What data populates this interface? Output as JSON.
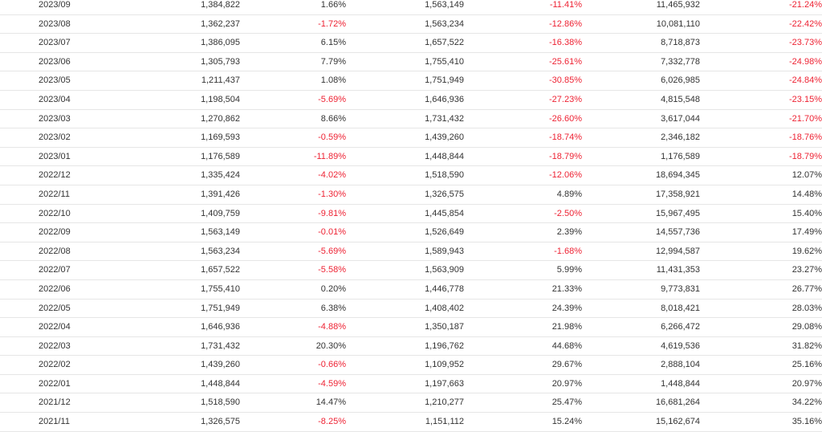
{
  "colors": {
    "negative": "#ee2233",
    "text": "#333333",
    "row_border": "#e6e6e6"
  },
  "rows": [
    {
      "month": "2023/09",
      "value_a": "1,384,822",
      "change_a": "1.66%",
      "value_b": "1,563,149",
      "change_b": "-11.41%",
      "cumulative": "11,465,932",
      "change_c": "-21.24%"
    },
    {
      "month": "2023/08",
      "value_a": "1,362,237",
      "change_a": "-1.72%",
      "value_b": "1,563,234",
      "change_b": "-12.86%",
      "cumulative": "10,081,110",
      "change_c": "-22.42%"
    },
    {
      "month": "2023/07",
      "value_a": "1,386,095",
      "change_a": "6.15%",
      "value_b": "1,657,522",
      "change_b": "-16.38%",
      "cumulative": "8,718,873",
      "change_c": "-23.73%"
    },
    {
      "month": "2023/06",
      "value_a": "1,305,793",
      "change_a": "7.79%",
      "value_b": "1,755,410",
      "change_b": "-25.61%",
      "cumulative": "7,332,778",
      "change_c": "-24.98%"
    },
    {
      "month": "2023/05",
      "value_a": "1,211,437",
      "change_a": "1.08%",
      "value_b": "1,751,949",
      "change_b": "-30.85%",
      "cumulative": "6,026,985",
      "change_c": "-24.84%"
    },
    {
      "month": "2023/04",
      "value_a": "1,198,504",
      "change_a": "-5.69%",
      "value_b": "1,646,936",
      "change_b": "-27.23%",
      "cumulative": "4,815,548",
      "change_c": "-23.15%"
    },
    {
      "month": "2023/03",
      "value_a": "1,270,862",
      "change_a": "8.66%",
      "value_b": "1,731,432",
      "change_b": "-26.60%",
      "cumulative": "3,617,044",
      "change_c": "-21.70%"
    },
    {
      "month": "2023/02",
      "value_a": "1,169,593",
      "change_a": "-0.59%",
      "value_b": "1,439,260",
      "change_b": "-18.74%",
      "cumulative": "2,346,182",
      "change_c": "-18.76%"
    },
    {
      "month": "2023/01",
      "value_a": "1,176,589",
      "change_a": "-11.89%",
      "value_b": "1,448,844",
      "change_b": "-18.79%",
      "cumulative": "1,176,589",
      "change_c": "-18.79%"
    },
    {
      "month": "2022/12",
      "value_a": "1,335,424",
      "change_a": "-4.02%",
      "value_b": "1,518,590",
      "change_b": "-12.06%",
      "cumulative": "18,694,345",
      "change_c": "12.07%"
    },
    {
      "month": "2022/11",
      "value_a": "1,391,426",
      "change_a": "-1.30%",
      "value_b": "1,326,575",
      "change_b": "4.89%",
      "cumulative": "17,358,921",
      "change_c": "14.48%"
    },
    {
      "month": "2022/10",
      "value_a": "1,409,759",
      "change_a": "-9.81%",
      "value_b": "1,445,854",
      "change_b": "-2.50%",
      "cumulative": "15,967,495",
      "change_c": "15.40%"
    },
    {
      "month": "2022/09",
      "value_a": "1,563,149",
      "change_a": "-0.01%",
      "value_b": "1,526,649",
      "change_b": "2.39%",
      "cumulative": "14,557,736",
      "change_c": "17.49%"
    },
    {
      "month": "2022/08",
      "value_a": "1,563,234",
      "change_a": "-5.69%",
      "value_b": "1,589,943",
      "change_b": "-1.68%",
      "cumulative": "12,994,587",
      "change_c": "19.62%"
    },
    {
      "month": "2022/07",
      "value_a": "1,657,522",
      "change_a": "-5.58%",
      "value_b": "1,563,909",
      "change_b": "5.99%",
      "cumulative": "11,431,353",
      "change_c": "23.27%"
    },
    {
      "month": "2022/06",
      "value_a": "1,755,410",
      "change_a": "0.20%",
      "value_b": "1,446,778",
      "change_b": "21.33%",
      "cumulative": "9,773,831",
      "change_c": "26.77%"
    },
    {
      "month": "2022/05",
      "value_a": "1,751,949",
      "change_a": "6.38%",
      "value_b": "1,408,402",
      "change_b": "24.39%",
      "cumulative": "8,018,421",
      "change_c": "28.03%"
    },
    {
      "month": "2022/04",
      "value_a": "1,646,936",
      "change_a": "-4.88%",
      "value_b": "1,350,187",
      "change_b": "21.98%",
      "cumulative": "6,266,472",
      "change_c": "29.08%"
    },
    {
      "month": "2022/03",
      "value_a": "1,731,432",
      "change_a": "20.30%",
      "value_b": "1,196,762",
      "change_b": "44.68%",
      "cumulative": "4,619,536",
      "change_c": "31.82%"
    },
    {
      "month": "2022/02",
      "value_a": "1,439,260",
      "change_a": "-0.66%",
      "value_b": "1,109,952",
      "change_b": "29.67%",
      "cumulative": "2,888,104",
      "change_c": "25.16%"
    },
    {
      "month": "2022/01",
      "value_a": "1,448,844",
      "change_a": "-4.59%",
      "value_b": "1,197,663",
      "change_b": "20.97%",
      "cumulative": "1,448,844",
      "change_c": "20.97%"
    },
    {
      "month": "2021/12",
      "value_a": "1,518,590",
      "change_a": "14.47%",
      "value_b": "1,210,277",
      "change_b": "25.47%",
      "cumulative": "16,681,264",
      "change_c": "34.22%"
    },
    {
      "month": "2021/11",
      "value_a": "1,326,575",
      "change_a": "-8.25%",
      "value_b": "1,151,112",
      "change_b": "15.24%",
      "cumulative": "15,162,674",
      "change_c": "35.16%"
    }
  ]
}
